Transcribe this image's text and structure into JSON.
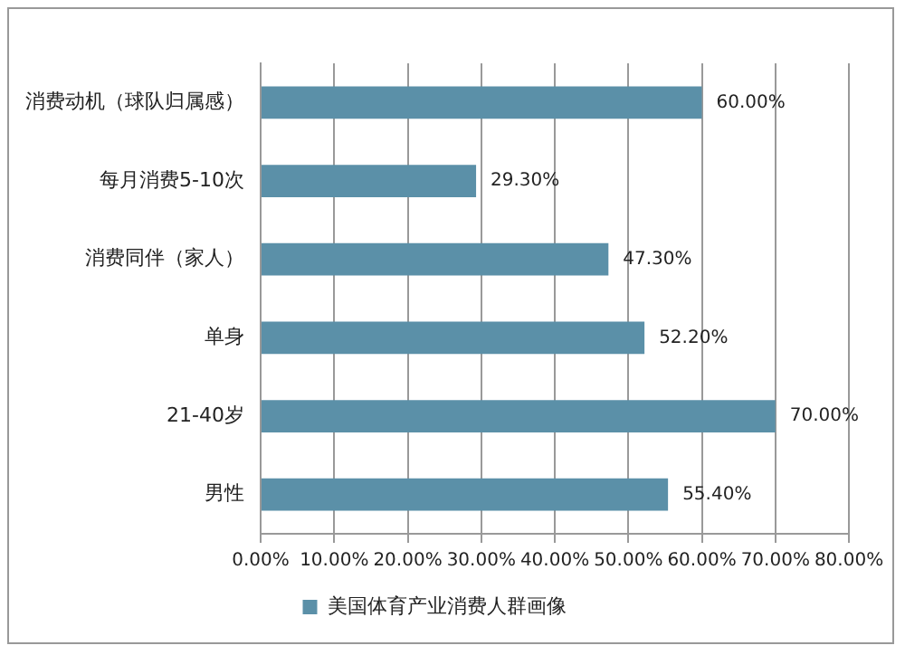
{
  "chart_data": {
    "type": "bar",
    "orientation": "horizontal",
    "categories": [
      "消费动机（球队归属感）",
      "每月消费5-10次",
      "消费同伴（家人）",
      "单身",
      "21-40岁",
      "男性"
    ],
    "series": [
      {
        "name": "美国体育产业消费人群画像",
        "color": "#5b90a8",
        "values": [
          60,
          29.3,
          47.3,
          52.2,
          70,
          55.4
        ],
        "value_labels": [
          "60.00%",
          "29.30%",
          "47.30%",
          "52.20%",
          "70.00%",
          "55.40%"
        ]
      }
    ],
    "xlim": [
      0,
      80
    ],
    "xticks": [
      {
        "value": 0,
        "label": "0.00%"
      },
      {
        "value": 10,
        "label": "10.00%"
      },
      {
        "value": 20,
        "label": "20.00%"
      },
      {
        "value": 30,
        "label": "30.00%"
      },
      {
        "value": 40,
        "label": "40.00%"
      },
      {
        "value": 50,
        "label": "50.00%"
      },
      {
        "value": 60,
        "label": "60.00%"
      },
      {
        "value": 70,
        "label": "70.00%"
      },
      {
        "value": 80,
        "label": "80.00%"
      }
    ],
    "grid": "x",
    "legend": "bottom"
  }
}
